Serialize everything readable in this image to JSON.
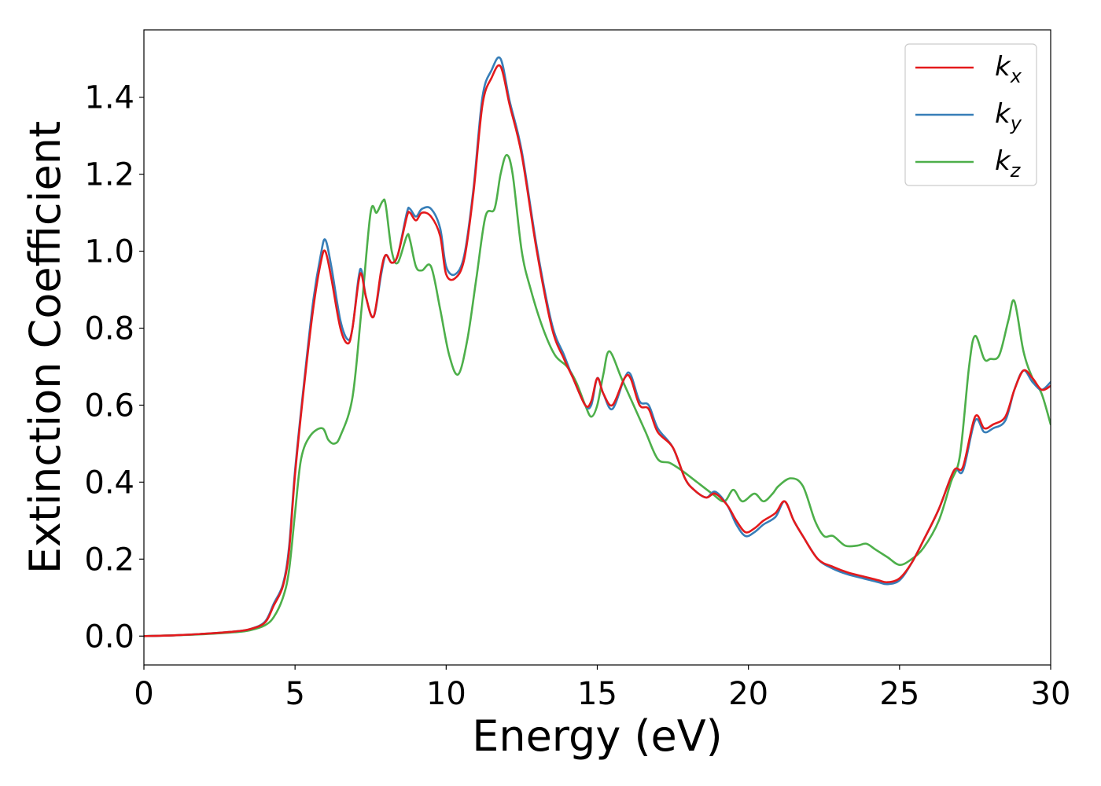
{
  "chart_data": {
    "type": "line",
    "xlabel": "Energy (eV)",
    "ylabel": "Extinction Coefficient",
    "xlim": [
      0,
      30
    ],
    "ylim": [
      -0.075,
      1.575
    ],
    "xticks": [
      0,
      5,
      10,
      15,
      20,
      25,
      30
    ],
    "xtick_labels": [
      "0",
      "5",
      "10",
      "15",
      "20",
      "25",
      "30"
    ],
    "yticks": [
      0.0,
      0.2,
      0.4,
      0.6,
      0.8,
      1.0,
      1.2,
      1.4
    ],
    "ytick_labels": [
      "0.0",
      "0.2",
      "0.4",
      "0.6",
      "0.8",
      "1.0",
      "1.2",
      "1.4"
    ],
    "grid": false,
    "legend_position": "top-right",
    "series": [
      {
        "name": "k",
        "subscript": "x",
        "color": "#e41a1c",
        "x": [
          0,
          1,
          2,
          3,
          3.5,
          4,
          4.3,
          4.6,
          4.8,
          5,
          5.3,
          5.6,
          5.85,
          6.0,
          6.2,
          6.5,
          6.75,
          6.9,
          7.1,
          7.2,
          7.35,
          7.6,
          7.85,
          8.0,
          8.2,
          8.4,
          8.7,
          8.8,
          9.0,
          9.2,
          9.5,
          9.8,
          10.0,
          10.3,
          10.6,
          10.9,
          11.2,
          11.5,
          11.8,
          12.1,
          12.5,
          13.0,
          13.5,
          13.9,
          14.2,
          14.6,
          14.8,
          15.0,
          15.2,
          15.5,
          15.9,
          16.1,
          16.4,
          16.7,
          17.0,
          17.5,
          17.9,
          18.2,
          18.6,
          18.9,
          19.3,
          19.6,
          19.9,
          20.2,
          20.5,
          20.9,
          21.2,
          21.5,
          21.8,
          22.3,
          22.8,
          23.3,
          23.8,
          24.3,
          24.6,
          25.0,
          25.4,
          25.8,
          26.3,
          26.8,
          27.1,
          27.5,
          27.8,
          28.1,
          28.5,
          28.8,
          29.1,
          29.4,
          29.7,
          30.0
        ],
        "values": [
          0.0,
          0.002,
          0.006,
          0.012,
          0.018,
          0.035,
          0.08,
          0.13,
          0.22,
          0.42,
          0.65,
          0.85,
          0.97,
          1.0,
          0.93,
          0.8,
          0.76,
          0.8,
          0.92,
          0.94,
          0.88,
          0.83,
          0.95,
          0.99,
          0.97,
          0.99,
          1.09,
          1.1,
          1.08,
          1.1,
          1.09,
          1.04,
          0.94,
          0.93,
          0.98,
          1.15,
          1.38,
          1.45,
          1.48,
          1.38,
          1.25,
          1.0,
          0.8,
          0.72,
          0.67,
          0.6,
          0.61,
          0.67,
          0.63,
          0.6,
          0.67,
          0.67,
          0.6,
          0.59,
          0.53,
          0.49,
          0.41,
          0.38,
          0.36,
          0.37,
          0.34,
          0.3,
          0.27,
          0.28,
          0.3,
          0.32,
          0.35,
          0.3,
          0.26,
          0.2,
          0.18,
          0.165,
          0.155,
          0.145,
          0.14,
          0.15,
          0.19,
          0.25,
          0.33,
          0.43,
          0.44,
          0.57,
          0.54,
          0.55,
          0.57,
          0.64,
          0.69,
          0.67,
          0.64,
          0.65
        ]
      },
      {
        "name": "k",
        "subscript": "y",
        "color": "#377eb8",
        "x": [
          0,
          1,
          2,
          3,
          3.5,
          4,
          4.3,
          4.6,
          4.8,
          5,
          5.3,
          5.6,
          5.85,
          6.0,
          6.2,
          6.5,
          6.75,
          6.9,
          7.1,
          7.2,
          7.35,
          7.6,
          7.85,
          8.0,
          8.2,
          8.4,
          8.7,
          8.8,
          9.0,
          9.2,
          9.5,
          9.8,
          10.0,
          10.3,
          10.6,
          10.9,
          11.2,
          11.5,
          11.8,
          12.1,
          12.5,
          13.0,
          13.5,
          13.9,
          14.2,
          14.6,
          14.8,
          15.0,
          15.2,
          15.5,
          15.9,
          16.1,
          16.4,
          16.7,
          17.0,
          17.5,
          17.9,
          18.2,
          18.6,
          18.9,
          19.3,
          19.6,
          19.9,
          20.2,
          20.5,
          20.9,
          21.2,
          21.5,
          21.8,
          22.3,
          22.8,
          23.3,
          23.8,
          24.3,
          24.6,
          25.0,
          25.4,
          25.8,
          26.3,
          26.8,
          27.1,
          27.5,
          27.8,
          28.1,
          28.5,
          28.8,
          29.1,
          29.4,
          29.7,
          30.0
        ],
        "values": [
          0.0,
          0.002,
          0.006,
          0.012,
          0.018,
          0.037,
          0.085,
          0.135,
          0.23,
          0.43,
          0.66,
          0.87,
          0.99,
          1.03,
          0.96,
          0.82,
          0.77,
          0.8,
          0.93,
          0.95,
          0.88,
          0.83,
          0.94,
          0.99,
          0.97,
          0.99,
          1.1,
          1.11,
          1.09,
          1.11,
          1.11,
          1.06,
          0.96,
          0.94,
          0.99,
          1.16,
          1.4,
          1.47,
          1.5,
          1.39,
          1.26,
          1.01,
          0.81,
          0.73,
          0.67,
          0.6,
          0.6,
          0.67,
          0.63,
          0.59,
          0.67,
          0.68,
          0.61,
          0.6,
          0.54,
          0.49,
          0.41,
          0.38,
          0.36,
          0.375,
          0.34,
          0.29,
          0.26,
          0.27,
          0.29,
          0.31,
          0.35,
          0.3,
          0.26,
          0.2,
          0.175,
          0.16,
          0.15,
          0.14,
          0.135,
          0.145,
          0.19,
          0.25,
          0.33,
          0.43,
          0.43,
          0.56,
          0.53,
          0.54,
          0.56,
          0.64,
          0.69,
          0.66,
          0.64,
          0.66
        ]
      },
      {
        "name": "k",
        "subscript": "z",
        "color": "#4daf4a",
        "x": [
          0,
          1,
          2,
          3,
          3.5,
          4,
          4.3,
          4.6,
          4.8,
          5,
          5.2,
          5.5,
          5.9,
          6.1,
          6.3,
          6.5,
          6.9,
          7.2,
          7.5,
          7.7,
          7.9,
          8.0,
          8.2,
          8.4,
          8.7,
          8.8,
          9.0,
          9.2,
          9.5,
          9.8,
          10.1,
          10.4,
          10.7,
          11.0,
          11.3,
          11.6,
          11.8,
          12.0,
          12.2,
          12.5,
          12.8,
          13.2,
          13.6,
          14.0,
          14.3,
          14.6,
          14.8,
          15.0,
          15.2,
          15.4,
          15.8,
          16.2,
          16.6,
          17.0,
          17.4,
          17.8,
          18.3,
          18.8,
          19.2,
          19.5,
          19.8,
          20.2,
          20.5,
          20.8,
          21.0,
          21.4,
          21.8,
          22.2,
          22.5,
          22.8,
          23.2,
          23.6,
          23.9,
          24.2,
          24.6,
          25.0,
          25.4,
          25.8,
          26.3,
          26.7,
          27.0,
          27.3,
          27.5,
          27.8,
          28.0,
          28.3,
          28.6,
          28.8,
          29.1,
          29.4,
          29.7,
          30.0
        ],
        "values": [
          0.0,
          0.002,
          0.005,
          0.01,
          0.015,
          0.028,
          0.05,
          0.1,
          0.17,
          0.32,
          0.46,
          0.52,
          0.54,
          0.51,
          0.5,
          0.52,
          0.62,
          0.85,
          1.1,
          1.1,
          1.13,
          1.12,
          1.0,
          0.97,
          1.04,
          1.03,
          0.96,
          0.95,
          0.96,
          0.85,
          0.73,
          0.68,
          0.77,
          0.93,
          1.09,
          1.11,
          1.2,
          1.25,
          1.2,
          1.0,
          0.9,
          0.8,
          0.73,
          0.7,
          0.66,
          0.6,
          0.57,
          0.6,
          0.68,
          0.74,
          0.67,
          0.6,
          0.53,
          0.46,
          0.45,
          0.43,
          0.4,
          0.37,
          0.35,
          0.38,
          0.35,
          0.37,
          0.35,
          0.37,
          0.39,
          0.41,
          0.39,
          0.3,
          0.26,
          0.26,
          0.235,
          0.235,
          0.24,
          0.225,
          0.205,
          0.185,
          0.2,
          0.23,
          0.3,
          0.4,
          0.47,
          0.7,
          0.78,
          0.72,
          0.72,
          0.73,
          0.82,
          0.87,
          0.74,
          0.67,
          0.63,
          0.55
        ]
      }
    ]
  }
}
